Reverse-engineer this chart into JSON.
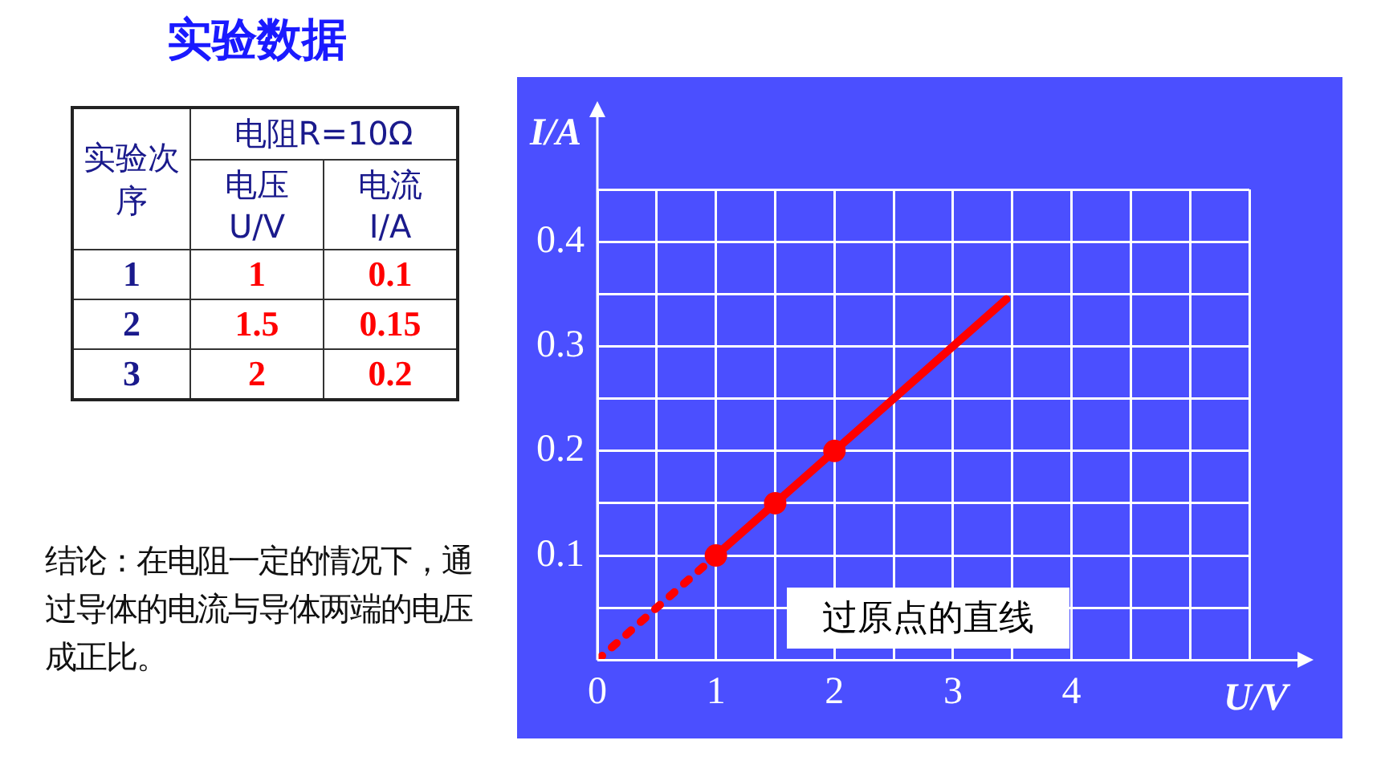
{
  "chart_data": {
    "type": "line",
    "title": "实验数据",
    "xlabel": "U/V",
    "ylabel": "I/A",
    "xlim": [
      0,
      5.5
    ],
    "xticks": [
      0,
      {
        "value": 0.5,
        "label": null
      },
      1,
      {
        "value": 1.5,
        "label": null
      },
      2,
      {
        "value": 2.5,
        "label": null
      },
      3,
      {
        "value": 3.5,
        "label": null
      },
      4,
      {
        "value": 4.5,
        "label": null
      },
      {
        "value": 5,
        "label": null
      },
      {
        "value": 5.5,
        "label": null
      }
    ],
    "ylim": [
      0,
      0.45
    ],
    "yticks": [
      {
        "value": 0,
        "label": null
      },
      {
        "value": 0.05,
        "label": null
      },
      0.1,
      {
        "value": 0.15,
        "label": null
      },
      0.2,
      {
        "value": 0.25,
        "label": null
      },
      0.3,
      {
        "value": 0.35,
        "label": null
      },
      0.4,
      {
        "value": 0.45,
        "label": null
      }
    ],
    "grid": true,
    "legend": false,
    "series": [
      {
        "type": "scatter",
        "color": "#ff0000",
        "marker": "circle",
        "x": [
          1,
          1.5,
          2
        ],
        "values": [
          0.1,
          0.15,
          0.2
        ]
      },
      {
        "color": "#ff0000",
        "marker": "none",
        "line_style": "solid",
        "x": [
          1,
          3.45
        ],
        "values": [
          0.1,
          0.345
        ]
      },
      {
        "color": "#ff0000",
        "marker": "none",
        "line_style": "dotted",
        "x": [
          0,
          1
        ],
        "values": [
          0,
          0.1
        ]
      }
    ],
    "annotations": [
      "电阻R=10Ω",
      "实验次序",
      "电压 U/V",
      "电流 I/A",
      "1",
      "1",
      "0.1",
      "2",
      "1.5",
      "0.15",
      "3",
      "2",
      "0.2",
      "结论：在电阻一定的情况下，通过导体的电流与导体两端的电压成正比。",
      "过原点的直线"
    ]
  }
}
